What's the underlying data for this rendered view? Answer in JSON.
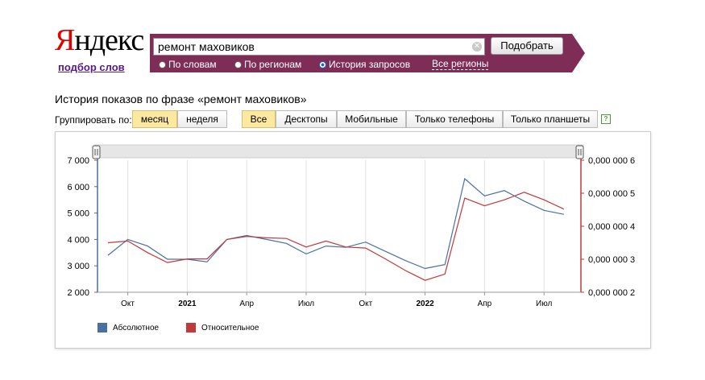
{
  "brand": {
    "logo_first": "Я",
    "logo_rest": "ндекс",
    "subtitle": "подбор слов"
  },
  "search": {
    "query": "ремонт маховиков",
    "submit_label": "Подобрать",
    "options": [
      {
        "label": "По словам",
        "selected": false
      },
      {
        "label": "По регионам",
        "selected": false
      },
      {
        "label": "История запросов",
        "selected": true
      }
    ],
    "regions_link": "Все регионы"
  },
  "section_title": "История показов по фразе «ремонт маховиков»",
  "controls": {
    "group_label": "Группировать по:",
    "period_buttons": [
      {
        "label": "месяц",
        "selected": true
      },
      {
        "label": "неделя",
        "selected": false
      }
    ],
    "device_buttons": [
      {
        "label": "Все",
        "selected": true
      },
      {
        "label": "Десктопы",
        "selected": false
      },
      {
        "label": "Мобильные",
        "selected": false
      },
      {
        "label": "Только телефоны",
        "selected": false
      },
      {
        "label": "Только планшеты",
        "selected": false
      }
    ],
    "help_icon": "?"
  },
  "colors": {
    "absolute": "#4a6fa5",
    "relative": "#c0393b",
    "brand_bar": "#7e2d57"
  },
  "chart_data": {
    "type": "line",
    "x_tick_labels": [
      "Окт",
      "2021",
      "Апр",
      "Июл",
      "Окт",
      "2022",
      "Апр",
      "Июл"
    ],
    "x_tick_bold": [
      "2021",
      "2022"
    ],
    "left_ticks": [
      "2 000",
      "3 000",
      "4 000",
      "5 000",
      "6 000",
      "7 000"
    ],
    "left_ylim": [
      2000,
      7000
    ],
    "right_ticks": [
      "0,000 000 2",
      "0,000 000 3",
      "0,000 000 4",
      "0,000 000 5",
      "0,000 000 6"
    ],
    "right_ylim": [
      2e-07,
      6e-07
    ],
    "series": [
      {
        "name": "Абсолютное",
        "axis": "left",
        "values": [
          3400,
          4000,
          3750,
          3250,
          3250,
          3150,
          4000,
          4150,
          4000,
          3850,
          3450,
          3750,
          3700,
          3900,
          3550,
          3200,
          2900,
          3050,
          6300,
          5650,
          5850,
          5450,
          5100,
          4950
        ]
      },
      {
        "name": "Относительное",
        "axis": "right",
        "values": [
          3.5e-07,
          3.55e-07,
          3.2e-07,
          2.9e-07,
          3.01e-07,
          3.01e-07,
          3.6e-07,
          3.69e-07,
          3.65e-07,
          3.63e-07,
          3.37e-07,
          3.55e-07,
          3.37e-07,
          3.34e-07,
          3.01e-07,
          2.66e-07,
          2.36e-07,
          2.55e-07,
          4.85e-07,
          4.62e-07,
          4.8e-07,
          5.03e-07,
          4.8e-07,
          4.52e-07
        ]
      }
    ],
    "legend": [
      "Абсолютное",
      "Относительное"
    ],
    "legend_position": "bottom-left"
  }
}
